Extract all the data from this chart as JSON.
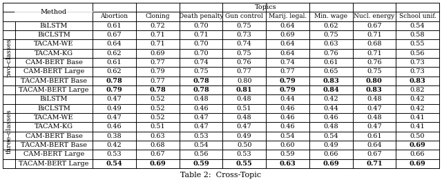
{
  "title": "Table 2:  Cross-Topic",
  "col_headers": [
    "Abortion",
    "Cloning",
    "Death penalty",
    "Gun control",
    "Marij. legal.",
    "Min. wage",
    "Nucl. energy",
    "School unif."
  ],
  "topics_header": "Topics",
  "method_header": "Method",
  "section1_label": "two-classes",
  "section2_label": "three-classes",
  "section1_rows": [
    {
      "method": "BiLSTM",
      "vals": [
        "0.61",
        "0.72",
        "0.70",
        "0.75",
        "0.64",
        "0.62",
        "0.67",
        "0.54"
      ],
      "bold": []
    },
    {
      "method": "BiCLSTM",
      "vals": [
        "0.67",
        "0.71",
        "0.71",
        "0.73",
        "0.69",
        "0.75",
        "0.71",
        "0.58"
      ],
      "bold": []
    },
    {
      "method": "TACAM-WE",
      "vals": [
        "0.64",
        "0.71",
        "0.70",
        "0.74",
        "0.64",
        "0.63",
        "0.68",
        "0.55"
      ],
      "bold": []
    },
    {
      "method": "TACAM-KG",
      "vals": [
        "0.62",
        "0.69",
        "0.70",
        "0.75",
        "0.64",
        "0.76",
        "0.71",
        "0.56"
      ],
      "bold": []
    },
    {
      "method": "CAM-BERT Base",
      "vals": [
        "0.61",
        "0.77",
        "0.74",
        "0.76",
        "0.74",
        "0.61",
        "0.76",
        "0.73"
      ],
      "bold": []
    },
    {
      "method": "CAM-BERT Large",
      "vals": [
        "0.62",
        "0.79",
        "0.75",
        "0.77",
        "0.77",
        "0.65",
        "0.75",
        "0.73"
      ],
      "bold": []
    },
    {
      "method": "TACAM-BERT Base",
      "vals": [
        "0.78",
        "0.77",
        "0.78",
        "0.80",
        "0.79",
        "0.83",
        "0.80",
        "0.83"
      ],
      "bold": [
        0,
        2,
        4,
        5,
        6,
        7
      ]
    },
    {
      "method": "TACAM-BERT Large",
      "vals": [
        "0.79",
        "0.78",
        "0.78",
        "0.81",
        "0.79",
        "0.84",
        "0.83",
        "0.82"
      ],
      "bold": [
        0,
        1,
        2,
        3,
        4,
        5,
        6
      ]
    }
  ],
  "section2_rows": [
    {
      "method": "BiLSTM",
      "vals": [
        "0.47",
        "0.52",
        "0.48",
        "0.48",
        "0.44",
        "0.42",
        "0.48",
        "0.42"
      ],
      "bold": []
    },
    {
      "method": "BiCLSTM",
      "vals": [
        "0.49",
        "0.52",
        "0.46",
        "0.51",
        "0.46",
        "0.44",
        "0.47",
        "0.42"
      ],
      "bold": []
    },
    {
      "method": "TACAM-WE",
      "vals": [
        "0.47",
        "0.52",
        "0.47",
        "0.48",
        "0.46",
        "0.46",
        "0.48",
        "0.41"
      ],
      "bold": []
    },
    {
      "method": "TACAM-KG",
      "vals": [
        "0.46",
        "0.51",
        "0.47",
        "0.47",
        "0.46",
        "0.48",
        "0.47",
        "0.41"
      ],
      "bold": []
    },
    {
      "method": "CAM-BERT Base",
      "vals": [
        "0.38",
        "0.63",
        "0.53",
        "0.49",
        "0.54",
        "0.54",
        "0.61",
        "0.50"
      ],
      "bold": []
    },
    {
      "method": "TACAM-BERT Base",
      "vals": [
        "0.42",
        "0.68",
        "0.54",
        "0.50",
        "0.60",
        "0.49",
        "0.64",
        "0.69"
      ],
      "bold": [
        7
      ]
    },
    {
      "method": "CAM-BERT Large",
      "vals": [
        "0.53",
        "0.67",
        "0.56",
        "0.53",
        "0.59",
        "0.66",
        "0.67",
        "0.66"
      ],
      "bold": []
    },
    {
      "method": "TACAM-BERT Large",
      "vals": [
        "0.54",
        "0.69",
        "0.59",
        "0.55",
        "0.63",
        "0.69",
        "0.71",
        "0.69"
      ],
      "bold": [
        0,
        1,
        2,
        3,
        4,
        5,
        6,
        7
      ]
    }
  ],
  "font_size": 7.0,
  "caption_font_size": 8.0
}
